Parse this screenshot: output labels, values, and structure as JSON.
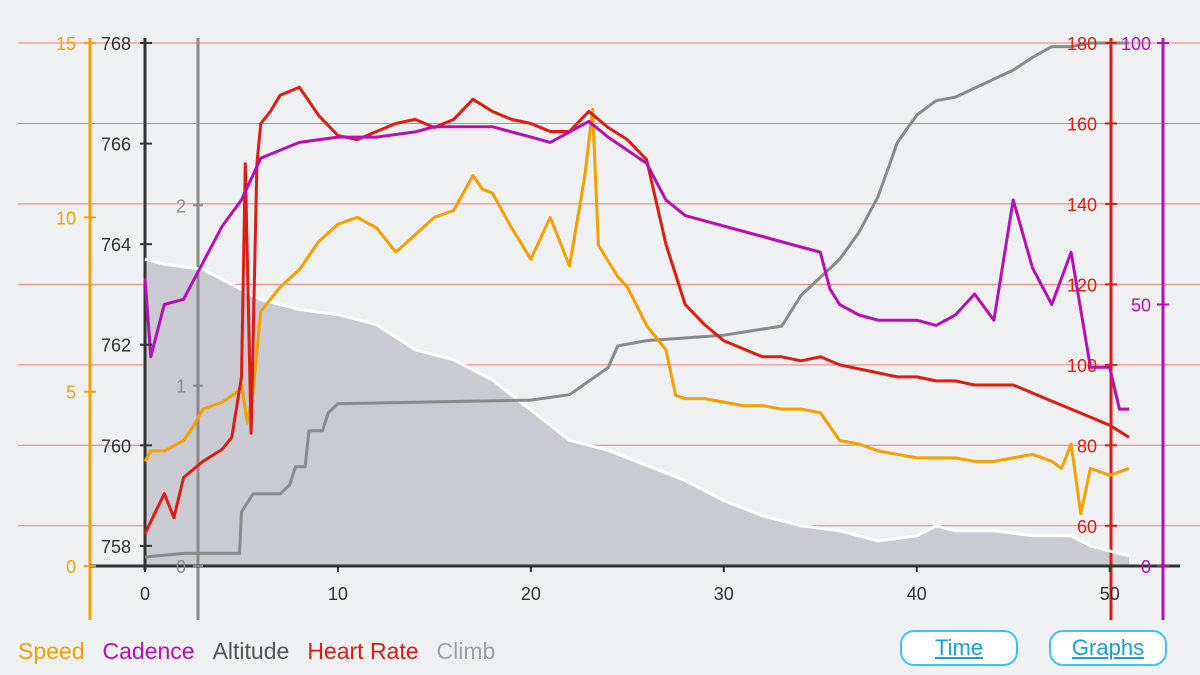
{
  "chart_data": {
    "type": "line",
    "grid": true,
    "x": {
      "range": [
        0,
        51
      ],
      "ticks": [
        "0",
        "10",
        "20",
        "30",
        "40",
        "50"
      ]
    },
    "axes": {
      "speed": {
        "ticks": [
          "0",
          "5",
          "10",
          "15"
        ],
        "range": [
          0,
          15
        ],
        "color": "#f5a000"
      },
      "altitude": {
        "ticks": [
          "758",
          "760",
          "762",
          "764",
          "766",
          "768"
        ],
        "range": [
          757.6,
          768
        ],
        "color": "#222222"
      },
      "climb": {
        "ticks": [
          "0",
          "1",
          "2"
        ],
        "range": [
          0,
          2.9
        ],
        "color": "#888888"
      },
      "heart_rate": {
        "ticks": [
          "60",
          "80",
          "100",
          "120",
          "140",
          "160",
          "180"
        ],
        "range": [
          50,
          180
        ],
        "color": "#dd1c14"
      },
      "cadence": {
        "ticks": [
          "0",
          "50",
          "100"
        ],
        "range": [
          0,
          100
        ],
        "color": "#b60fb3"
      }
    },
    "series": [
      {
        "name": "Altitude",
        "axis": "altitude",
        "color": "#ffffff",
        "fill": "#c9cad2",
        "points": [
          [
            0,
            763.7
          ],
          [
            1,
            763.6
          ],
          [
            3,
            763.5
          ],
          [
            5,
            763.1
          ],
          [
            6,
            762.9
          ],
          [
            8,
            762.7
          ],
          [
            10,
            762.6
          ],
          [
            11,
            762.5
          ],
          [
            12,
            762.4
          ],
          [
            14,
            761.9
          ],
          [
            16,
            761.7
          ],
          [
            18,
            761.3
          ],
          [
            20,
            760.7
          ],
          [
            22,
            760.1
          ],
          [
            24,
            759.9
          ],
          [
            26,
            759.6
          ],
          [
            28,
            759.3
          ],
          [
            30,
            758.9
          ],
          [
            32,
            758.6
          ],
          [
            34,
            758.4
          ],
          [
            36,
            758.3
          ],
          [
            38,
            758.1
          ],
          [
            40,
            758.2
          ],
          [
            41,
            758.4
          ],
          [
            42,
            758.3
          ],
          [
            44,
            758.3
          ],
          [
            46,
            758.2
          ],
          [
            48,
            758.2
          ],
          [
            49,
            758.0
          ],
          [
            51,
            757.8
          ]
        ]
      },
      {
        "name": "Climb",
        "axis": "climb",
        "color": "#8a8a8a",
        "points": [
          [
            0,
            0.05
          ],
          [
            2,
            0.07
          ],
          [
            4.9,
            0.07
          ],
          [
            5,
            0.3
          ],
          [
            5.6,
            0.4
          ],
          [
            7,
            0.4
          ],
          [
            7.5,
            0.45
          ],
          [
            7.8,
            0.55
          ],
          [
            8.3,
            0.55
          ],
          [
            8.5,
            0.75
          ],
          [
            9.2,
            0.75
          ],
          [
            9.5,
            0.85
          ],
          [
            10,
            0.9
          ],
          [
            20,
            0.92
          ],
          [
            22,
            0.95
          ],
          [
            24,
            1.1
          ],
          [
            24.5,
            1.22
          ],
          [
            26,
            1.25
          ],
          [
            30,
            1.28
          ],
          [
            33,
            1.33
          ],
          [
            34,
            1.5
          ],
          [
            35,
            1.6
          ],
          [
            36,
            1.7
          ],
          [
            37,
            1.85
          ],
          [
            38,
            2.05
          ],
          [
            39,
            2.35
          ],
          [
            40,
            2.5
          ],
          [
            41,
            2.58
          ],
          [
            42,
            2.6
          ],
          [
            43,
            2.65
          ],
          [
            44,
            2.7
          ],
          [
            45,
            2.75
          ],
          [
            46,
            2.82
          ],
          [
            47,
            2.88
          ],
          [
            48,
            2.88
          ],
          [
            49,
            2.9
          ],
          [
            51,
            2.9
          ]
        ]
      },
      {
        "name": "Speed",
        "axis": "speed",
        "color": "#f5a000",
        "points": [
          [
            0,
            3.0
          ],
          [
            0.3,
            3.3
          ],
          [
            1,
            3.3
          ],
          [
            2,
            3.6
          ],
          [
            2.5,
            4.0
          ],
          [
            3,
            4.5
          ],
          [
            4,
            4.7
          ],
          [
            4.8,
            5.0
          ],
          [
            5,
            5.2
          ],
          [
            5.3,
            4.1
          ],
          [
            5.6,
            5.0
          ],
          [
            6,
            7.3
          ],
          [
            7,
            8.0
          ],
          [
            8,
            8.5
          ],
          [
            9,
            9.3
          ],
          [
            10,
            9.8
          ],
          [
            11,
            10.0
          ],
          [
            12,
            9.7
          ],
          [
            13,
            9.0
          ],
          [
            14,
            9.5
          ],
          [
            15,
            10.0
          ],
          [
            16,
            10.2
          ],
          [
            17,
            11.2
          ],
          [
            17.5,
            10.8
          ],
          [
            18,
            10.7
          ],
          [
            19,
            9.7
          ],
          [
            20,
            8.8
          ],
          [
            21,
            10.0
          ],
          [
            22,
            8.6
          ],
          [
            22.8,
            11.2
          ],
          [
            23.2,
            13.1
          ],
          [
            23.5,
            9.2
          ],
          [
            24.5,
            8.3
          ],
          [
            25,
            8.0
          ],
          [
            26,
            6.9
          ],
          [
            27,
            6.2
          ],
          [
            27.5,
            4.9
          ],
          [
            28,
            4.8
          ],
          [
            29,
            4.8
          ],
          [
            30,
            4.7
          ],
          [
            31,
            4.6
          ],
          [
            32,
            4.6
          ],
          [
            33,
            4.5
          ],
          [
            34,
            4.5
          ],
          [
            35,
            4.4
          ],
          [
            36,
            3.6
          ],
          [
            37,
            3.5
          ],
          [
            38,
            3.3
          ],
          [
            40,
            3.1
          ],
          [
            42,
            3.1
          ],
          [
            43,
            3.0
          ],
          [
            44,
            3.0
          ],
          [
            45,
            3.1
          ],
          [
            46,
            3.2
          ],
          [
            47,
            3.0
          ],
          [
            47.5,
            2.8
          ],
          [
            48,
            3.5
          ],
          [
            48.5,
            1.5
          ],
          [
            49,
            2.8
          ],
          [
            50,
            2.6
          ],
          [
            51,
            2.8
          ]
        ]
      },
      {
        "name": "Heart Rate",
        "axis": "heart_rate",
        "color": "#dd1c14",
        "points": [
          [
            0,
            58
          ],
          [
            0.5,
            63
          ],
          [
            1,
            68
          ],
          [
            1.5,
            62
          ],
          [
            2,
            72
          ],
          [
            3,
            76
          ],
          [
            4,
            79
          ],
          [
            4.5,
            82
          ],
          [
            5,
            97
          ],
          [
            5.2,
            150
          ],
          [
            5.5,
            83
          ],
          [
            5.8,
            150
          ],
          [
            6,
            160
          ],
          [
            6.5,
            163
          ],
          [
            7,
            167
          ],
          [
            8,
            169
          ],
          [
            9,
            162
          ],
          [
            10,
            157
          ],
          [
            11,
            156
          ],
          [
            12,
            158
          ],
          [
            13,
            160
          ],
          [
            14,
            161
          ],
          [
            15,
            159
          ],
          [
            16,
            161
          ],
          [
            17,
            166
          ],
          [
            18,
            163
          ],
          [
            19,
            161
          ],
          [
            20,
            160
          ],
          [
            21,
            158
          ],
          [
            22,
            158
          ],
          [
            23,
            163
          ],
          [
            24,
            159
          ],
          [
            25,
            156
          ],
          [
            26,
            151
          ],
          [
            27,
            130
          ],
          [
            28,
            115
          ],
          [
            29,
            110
          ],
          [
            30,
            106
          ],
          [
            31,
            104
          ],
          [
            32,
            102
          ],
          [
            33,
            102
          ],
          [
            34,
            101
          ],
          [
            35,
            102
          ],
          [
            36,
            100
          ],
          [
            37,
            99
          ],
          [
            38,
            98
          ],
          [
            39,
            97
          ],
          [
            40,
            97
          ],
          [
            41,
            96
          ],
          [
            42,
            96
          ],
          [
            43,
            95
          ],
          [
            44,
            95
          ],
          [
            45,
            95
          ],
          [
            46,
            93
          ],
          [
            47,
            91
          ],
          [
            48,
            89
          ],
          [
            49,
            87
          ],
          [
            50,
            85
          ],
          [
            51,
            82
          ]
        ]
      },
      {
        "name": "Cadence",
        "axis": "cadence",
        "color": "#b60fb3",
        "points": [
          [
            0,
            55
          ],
          [
            0.3,
            40
          ],
          [
            1,
            50
          ],
          [
            2,
            51
          ],
          [
            3,
            58
          ],
          [
            4,
            65
          ],
          [
            5,
            70
          ],
          [
            6,
            78
          ],
          [
            8,
            81
          ],
          [
            10,
            82
          ],
          [
            12,
            82
          ],
          [
            14,
            83
          ],
          [
            15,
            84
          ],
          [
            16,
            84
          ],
          [
            18,
            84
          ],
          [
            20,
            82
          ],
          [
            21,
            81
          ],
          [
            22,
            83
          ],
          [
            23,
            85
          ],
          [
            24,
            82
          ],
          [
            26,
            77
          ],
          [
            27,
            70
          ],
          [
            28,
            67
          ],
          [
            30,
            65
          ],
          [
            32,
            63
          ],
          [
            34,
            61
          ],
          [
            35,
            60
          ],
          [
            35.5,
            53
          ],
          [
            36,
            50
          ],
          [
            37,
            48
          ],
          [
            38,
            47
          ],
          [
            39,
            47
          ],
          [
            40,
            47
          ],
          [
            41,
            46
          ],
          [
            42,
            48
          ],
          [
            43,
            52
          ],
          [
            44,
            47
          ],
          [
            45,
            70
          ],
          [
            46,
            57
          ],
          [
            47,
            50
          ],
          [
            48,
            60
          ],
          [
            49,
            38
          ],
          [
            50,
            38
          ],
          [
            50.5,
            30
          ],
          [
            51,
            30
          ]
        ]
      }
    ]
  },
  "legend": {
    "speed": "Speed",
    "cadence": "Cadence",
    "altitude": "Altitude",
    "heart_rate": "Heart Rate",
    "climb": "Climb"
  },
  "buttons": {
    "time": "Time",
    "graphs": "Graphs"
  }
}
